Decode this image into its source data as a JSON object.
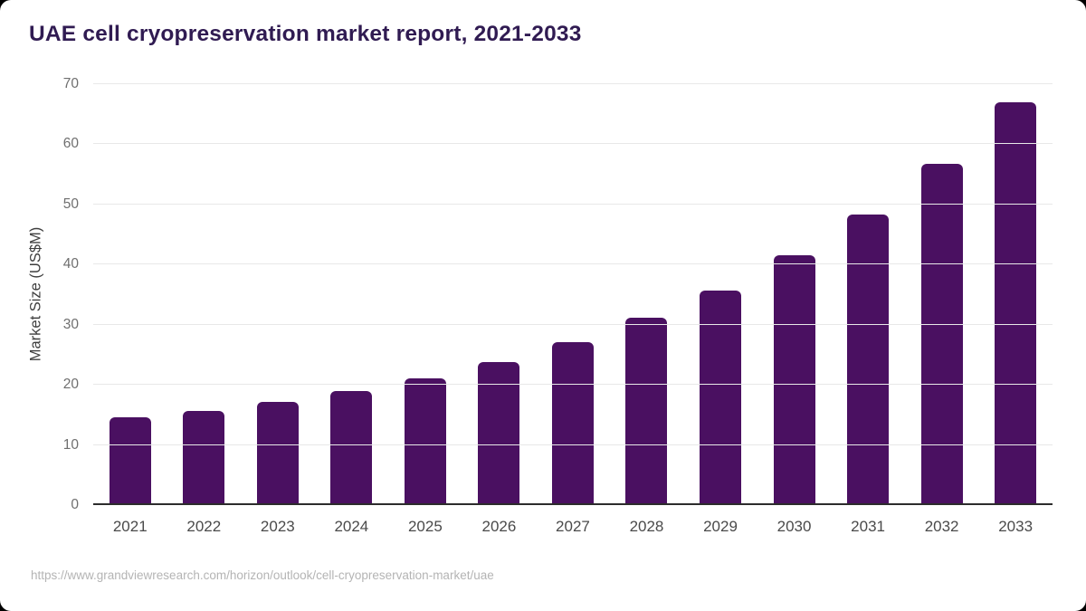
{
  "chart_data": {
    "type": "bar",
    "title": "UAE cell cryopreservation market report, 2021-2033",
    "xlabel": "",
    "ylabel": "Market Size (US$M)",
    "categories": [
      "2021",
      "2022",
      "2023",
      "2024",
      "2025",
      "2026",
      "2027",
      "2028",
      "2029",
      "2030",
      "2031",
      "2032",
      "2033"
    ],
    "values": [
      14.6,
      15.7,
      17.2,
      19.0,
      21.1,
      23.8,
      27.1,
      31.1,
      35.7,
      41.5,
      48.4,
      56.8,
      67.0
    ],
    "ylim": [
      0,
      70
    ],
    "yticks": [
      0,
      10,
      20,
      30,
      40,
      50,
      60,
      70
    ],
    "grid": "horizontal",
    "legend": "none",
    "bar_color": "#4a1061",
    "title_color": "#301b52",
    "source_url": "https://www.grandviewresearch.com/horizon/outlook/cell-cryopreservation-market/uae"
  }
}
